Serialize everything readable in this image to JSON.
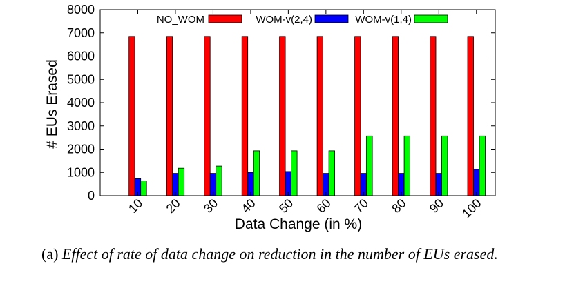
{
  "chart_data": {
    "type": "bar",
    "xlabel": "Data Change (in %)",
    "ylabel": "# EUs Erased",
    "ylim": [
      0,
      8000
    ],
    "yticks": [
      "0",
      "1000",
      "2000",
      "3000",
      "4000",
      "5000",
      "6000",
      "7000",
      "8000"
    ],
    "categories": [
      "10",
      "20",
      "30",
      "40",
      "50",
      "60",
      "70",
      "80",
      "90",
      "100"
    ],
    "legend_position": "top",
    "grid": false,
    "series": [
      {
        "name": "NO_WOM",
        "color": "#ff0000",
        "values": [
          6850,
          6850,
          6850,
          6850,
          6850,
          6850,
          6850,
          6850,
          6850,
          6850
        ]
      },
      {
        "name": "WOM-v(2,4)",
        "color": "#0000ff",
        "values": [
          730,
          960,
          960,
          1000,
          1040,
          960,
          960,
          960,
          960,
          1130
        ]
      },
      {
        "name": "WOM-v(1,4)",
        "color": "#00ff00",
        "values": [
          640,
          1180,
          1270,
          1930,
          1930,
          1930,
          2570,
          2570,
          2570,
          2570
        ]
      }
    ]
  },
  "caption": {
    "label": "(a)",
    "text": "Effect of rate of data change on reduction in the number of EUs erased."
  }
}
